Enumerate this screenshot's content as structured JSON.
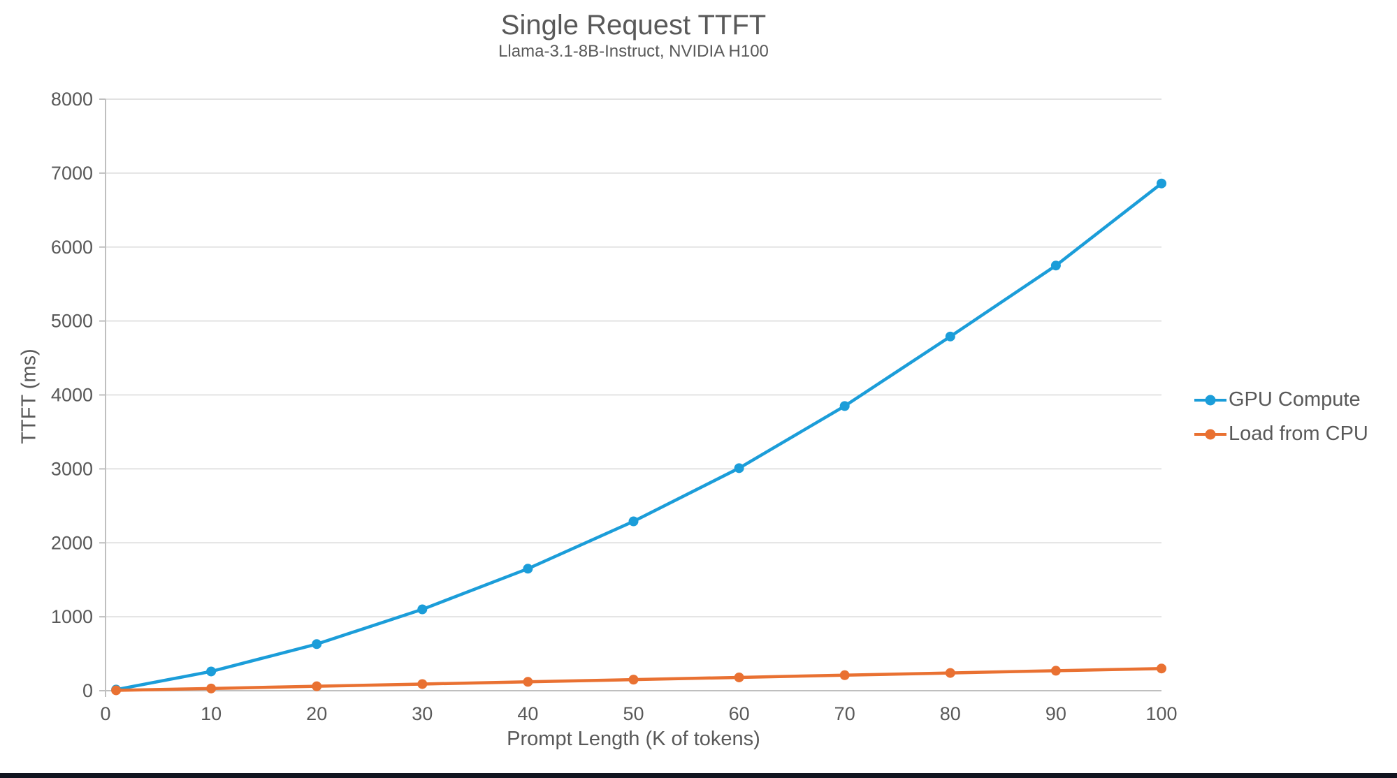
{
  "chart_data": {
    "type": "line",
    "title": "Single Request TTFT",
    "subtitle": "Llama-3.1-8B-Instruct, NVIDIA H100",
    "xlabel": "Prompt Length (K of tokens)",
    "ylabel": "TTFT (ms)",
    "x": [
      1,
      10,
      20,
      30,
      40,
      50,
      60,
      70,
      80,
      90,
      100
    ],
    "series": [
      {
        "name": "GPU Compute",
        "color": "#1B9DD9",
        "values": [
          15,
          260,
          630,
          1100,
          1650,
          2290,
          3010,
          3850,
          4790,
          5750,
          6860
        ]
      },
      {
        "name": "Load from CPU",
        "color": "#E97132",
        "values": [
          5,
          30,
          60,
          90,
          120,
          150,
          180,
          210,
          240,
          270,
          300
        ]
      }
    ],
    "xlim": [
      0,
      100
    ],
    "ylim": [
      0,
      8000
    ],
    "x_ticks": [
      0,
      10,
      20,
      30,
      40,
      50,
      60,
      70,
      80,
      90,
      100
    ],
    "y_ticks": [
      0,
      1000,
      2000,
      3000,
      4000,
      5000,
      6000,
      7000,
      8000
    ],
    "grid": true,
    "legend_position": "right",
    "gridline_color": "#D9D9D9",
    "axis_color": "#BFBFBF",
    "text_color": "#595959",
    "marker_radius": 7,
    "line_width": 4.5
  }
}
